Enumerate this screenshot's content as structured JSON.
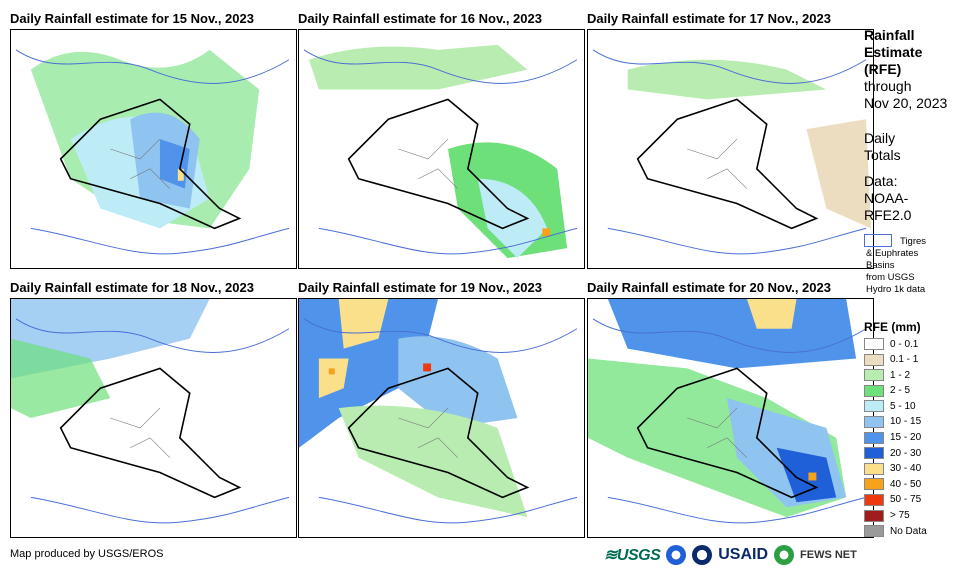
{
  "panels": [
    {
      "title": "Daily Rainfall estimate for 15 Nov., 2023"
    },
    {
      "title": "Daily Rainfall estimate for 16 Nov., 2023"
    },
    {
      "title": "Daily Rainfall estimate for 17 Nov., 2023"
    },
    {
      "title": "Daily Rainfall estimate for 18 Nov., 2023"
    },
    {
      "title": "Daily Rainfall estimate for 19 Nov., 2023"
    },
    {
      "title": "Daily Rainfall estimate for 20 Nov., 2023"
    }
  ],
  "side": {
    "title_lines": [
      "Rainfall",
      "Estimate",
      "(RFE)"
    ],
    "through": "through",
    "date": "Nov 20, 2023",
    "daily": "Daily",
    "totals": "Totals",
    "data_label": "Data:",
    "data_source1": "NOAA-",
    "data_source2": "RFE2.0"
  },
  "basins_legend": {
    "line1": "Tigres",
    "line2": "& Euphrates",
    "line3": "Basins",
    "line4": "from USGS",
    "line5": "Hydro 1k data",
    "color": "#4b6fd6"
  },
  "legend": {
    "title": "RFE (mm)",
    "items": [
      {
        "label": "0 - 0.1",
        "color": "#ffffff"
      },
      {
        "label": "0.1 - 1",
        "color": "#ecdcc0"
      },
      {
        "label": "1 - 2",
        "color": "#b8ecb0"
      },
      {
        "label": "2 - 5",
        "color": "#6ee07a"
      },
      {
        "label": "5 - 10",
        "color": "#bdebf6"
      },
      {
        "label": "10 - 15",
        "color": "#8fc3f0"
      },
      {
        "label": "15 - 20",
        "color": "#4f93ea"
      },
      {
        "label": "20 - 30",
        "color": "#1f5fd8"
      },
      {
        "label": "30 - 40",
        "color": "#fbe08c"
      },
      {
        "label": "40 - 50",
        "color": "#f7a21b"
      },
      {
        "label": "50 - 75",
        "color": "#ee3a0e"
      },
      {
        "label": "> 75",
        "color": "#a11d1d"
      },
      {
        "label": "No Data",
        "color": "#9a9a9a"
      }
    ]
  },
  "footer": "Map produced by USGS/EROS",
  "logos": {
    "usgs": "≋USGS",
    "usaid": "USAID",
    "fews": "FEWS NET"
  }
}
